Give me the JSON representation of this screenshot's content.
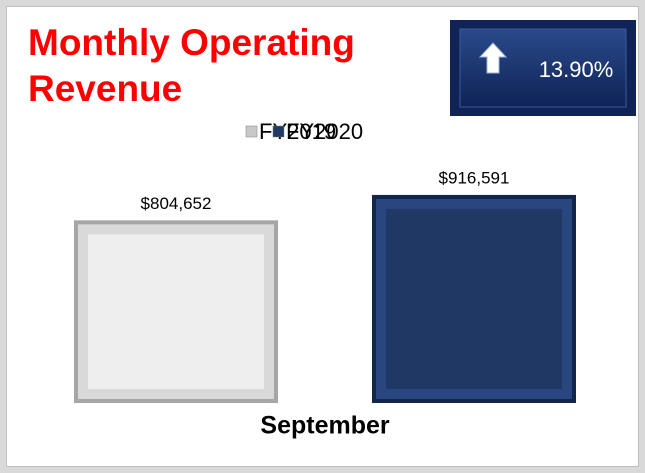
{
  "chart_data": {
    "type": "bar",
    "title": "Monthly Operating Revenue",
    "annotation": "13.90%",
    "categories": [
      "September"
    ],
    "series": [
      {
        "name": "FY2019",
        "color": "#eeeeee",
        "values": [
          804652
        ],
        "value_labels": [
          "$804,652"
        ]
      },
      {
        "name": "FY2020",
        "color": "#1f3864",
        "values": [
          916591
        ],
        "value_labels": [
          "$916,591"
        ]
      }
    ],
    "ylim": [
      0,
      1000000
    ],
    "legend": "top"
  }
}
